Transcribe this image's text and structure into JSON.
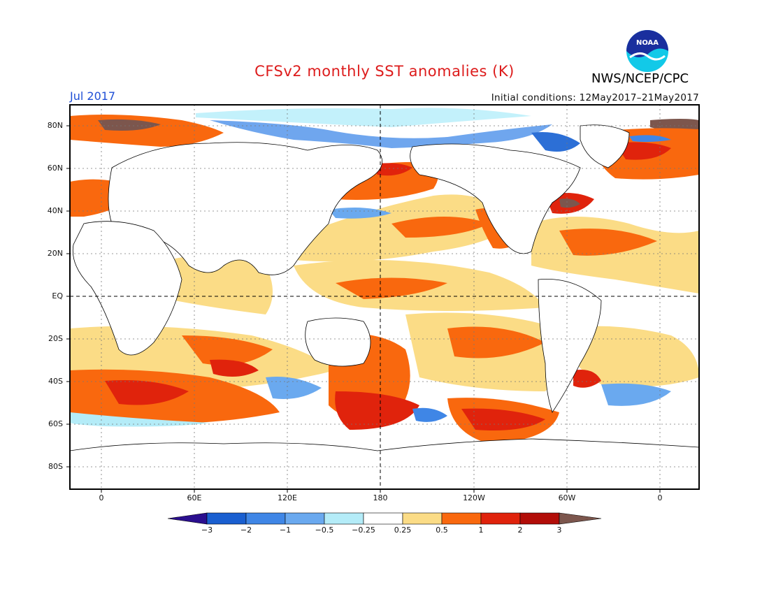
{
  "header": {
    "title": "CFSv2 monthly SST anomalies (K)",
    "org": "NWS/NCEP/CPC",
    "month": "Jul 2017",
    "initial_conditions": "Initial conditions: 12May2017–21May2017"
  },
  "logo": {
    "text": "NOAA",
    "icon": "noaa-logo-icon"
  },
  "map": {
    "lat_labels": [
      "80N",
      "60N",
      "40N",
      "20N",
      "EQ",
      "20S",
      "40S",
      "60S",
      "80S"
    ],
    "lon_labels": [
      "0",
      "60E",
      "120E",
      "180",
      "120W",
      "60W",
      "0"
    ],
    "grid": "dotted",
    "reference_lines": [
      "EQ",
      "180"
    ]
  },
  "colorbar": {
    "labels": [
      "−3",
      "−2",
      "−1",
      "−0.5",
      "−0.25",
      "0.25",
      "0.5",
      "1",
      "2",
      "3"
    ],
    "colors": [
      "#2b0f8f",
      "#1a5fd0",
      "#3f86e6",
      "#6aa9ef",
      "#b4ecf8",
      "#ffffff",
      "#fbdc86",
      "#f9680e",
      "#e0230c",
      "#b20d08",
      "#7c564d"
    ]
  }
}
